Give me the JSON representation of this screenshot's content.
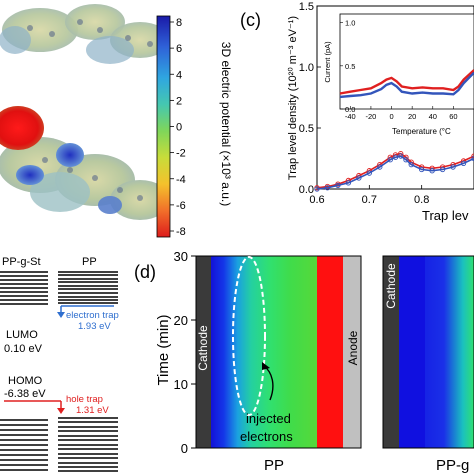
{
  "colorbar": {
    "label": "3D electric potential (×10³ a.u.)",
    "ticks": [
      "8",
      "6",
      "4",
      "2",
      "0",
      "-2",
      "-4",
      "-6",
      "-8"
    ],
    "colors": [
      "#1a1aa8",
      "#2f62d8",
      "#2fa6e0",
      "#45c7b0",
      "#7fd65a",
      "#c8dc3a",
      "#f4c22c",
      "#f2702a",
      "#dd1c1c"
    ]
  },
  "panel_c": {
    "label": "(c)",
    "chart_data": {
      "type": "line",
      "ylabel": "Trap level density (10²⁰ m⁻³ eV⁻¹)",
      "xlabel": "Trap lev",
      "xlim": [
        0.6,
        0.9
      ],
      "ylim": [
        0,
        1.5
      ],
      "xticks": [
        "0.6",
        "0.7",
        "0.8"
      ],
      "yticks": [
        "0.0",
        "0.5",
        "1.0",
        "1.5"
      ],
      "series": [
        {
          "color": "#e02020",
          "x": [
            0.6,
            0.62,
            0.64,
            0.66,
            0.68,
            0.7,
            0.72,
            0.74,
            0.75,
            0.76,
            0.77,
            0.78,
            0.8,
            0.82,
            0.84,
            0.86,
            0.88,
            0.9
          ],
          "y": [
            0.01,
            0.02,
            0.04,
            0.07,
            0.11,
            0.15,
            0.2,
            0.26,
            0.28,
            0.29,
            0.26,
            0.22,
            0.18,
            0.17,
            0.18,
            0.2,
            0.23,
            0.27
          ]
        },
        {
          "color": "#3355bb",
          "x": [
            0.6,
            0.62,
            0.64,
            0.66,
            0.68,
            0.7,
            0.72,
            0.74,
            0.75,
            0.76,
            0.77,
            0.78,
            0.8,
            0.82,
            0.84,
            0.86,
            0.88,
            0.9
          ],
          "y": [
            0.0,
            0.01,
            0.03,
            0.05,
            0.09,
            0.13,
            0.18,
            0.24,
            0.26,
            0.27,
            0.24,
            0.2,
            0.16,
            0.15,
            0.16,
            0.18,
            0.21,
            0.25
          ]
        }
      ]
    },
    "inset": {
      "ylabel": "Current (pA)",
      "xlabel": "Temperature (°C",
      "xlim": [
        -50,
        80
      ],
      "ylim": [
        0,
        1.1
      ],
      "xticks": [
        "-40",
        "-20",
        "0",
        "20",
        "40",
        "60"
      ],
      "yticks": [
        "0.0",
        "0.5",
        "1.0"
      ],
      "series": [
        {
          "color": "#e02020",
          "x": [
            -50,
            -40,
            -30,
            -20,
            -10,
            -5,
            0,
            5,
            10,
            20,
            30,
            40,
            50,
            60,
            65,
            70,
            80
          ],
          "y": [
            0.18,
            0.2,
            0.22,
            0.24,
            0.3,
            0.34,
            0.36,
            0.32,
            0.26,
            0.24,
            0.25,
            0.24,
            0.24,
            0.22,
            0.26,
            0.34,
            0.45
          ]
        },
        {
          "color": "#3355bb",
          "x": [
            -50,
            -40,
            -30,
            -20,
            -10,
            -5,
            0,
            5,
            10,
            20,
            30,
            40,
            50,
            60,
            65,
            70,
            80
          ],
          "y": [
            0.14,
            0.15,
            0.16,
            0.18,
            0.23,
            0.28,
            0.3,
            0.26,
            0.2,
            0.18,
            0.19,
            0.18,
            0.18,
            0.17,
            0.22,
            0.3,
            0.42
          ]
        }
      ]
    }
  },
  "panel_b": {
    "left_title": "PP-g-St",
    "right_title": "PP",
    "lumo_label": "LUMO",
    "lumo_value": "0.10 eV",
    "electron_trap_label": "electron trap",
    "electron_trap_value": "1.93 eV",
    "homo_label": "HOMO",
    "homo_value": "-6.38 eV",
    "hole_trap_label": "hole trap",
    "hole_trap_value": "1.31 eV"
  },
  "panel_d": {
    "label": "(d)",
    "ylabel": "Time (min)",
    "yticks": [
      "0",
      "10",
      "20",
      "30"
    ],
    "ylim": [
      0,
      30
    ],
    "left_xlabel": "PP",
    "right_xlabel": "PP-g",
    "cathode_label": "Cathode",
    "anode_label": "Anode",
    "annotation": "injected electrons",
    "annotation_line1": "injected",
    "annotation_line2": "electrons"
  }
}
